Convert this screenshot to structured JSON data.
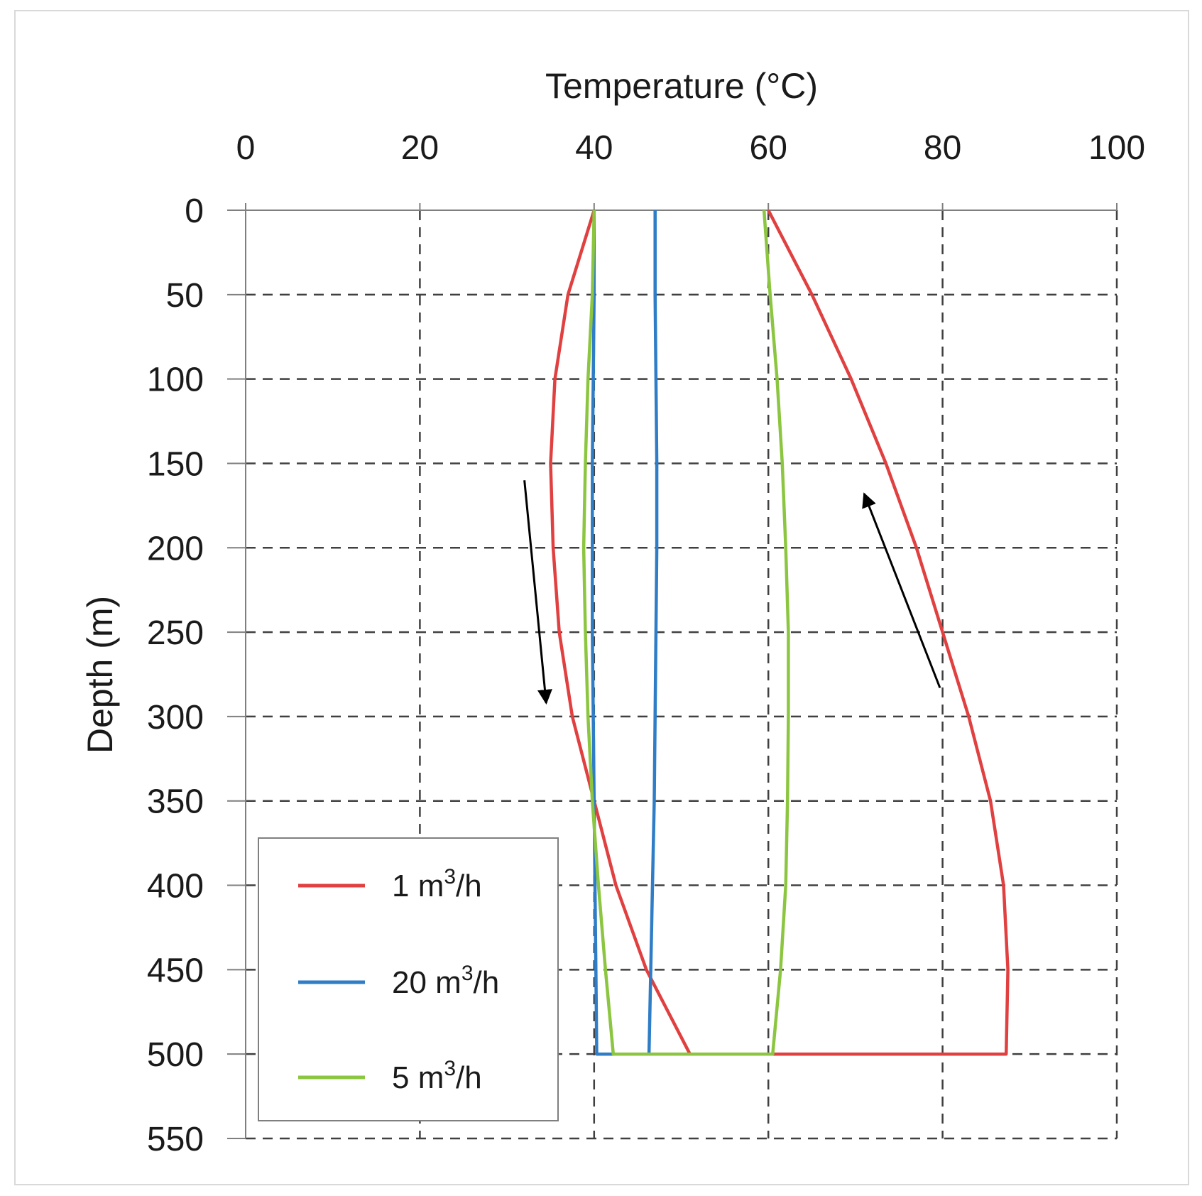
{
  "chart_data": {
    "type": "line",
    "title": "",
    "xlabel": "Temperature (°C)",
    "ylabel": "Depth (m)",
    "xlim": [
      0,
      100
    ],
    "ylim": [
      0,
      550
    ],
    "x_axis_position": "top",
    "y_axis_inverted": true,
    "x_ticks": [
      0,
      20,
      40,
      60,
      80,
      100
    ],
    "y_ticks": [
      0,
      50,
      100,
      150,
      200,
      250,
      300,
      350,
      400,
      450,
      500,
      550
    ],
    "grid": "dashed",
    "legend_position": "bottom-left",
    "series": [
      {
        "name": "1 m³/h",
        "label_main": "1 m",
        "label_sup": "3",
        "label_tail": "/h",
        "color": "#e04040",
        "downflow": {
          "temperature": [
            40,
            37,
            35.5,
            35,
            35.3,
            36,
            37.5,
            40,
            42.5,
            46,
            51
          ],
          "depth": [
            0,
            50,
            100,
            150,
            200,
            250,
            300,
            350,
            400,
            450,
            500
          ]
        },
        "upflow": {
          "temperature": [
            60,
            65,
            69.5,
            73.5,
            77,
            80,
            83,
            85.5,
            87,
            87.5,
            87.3
          ],
          "depth": [
            0,
            50,
            100,
            150,
            200,
            250,
            300,
            350,
            400,
            450,
            500
          ]
        }
      },
      {
        "name": "20 m³/h",
        "label_main": "20 m",
        "label_sup": "3",
        "label_tail": "/h",
        "color": "#2e7dc6",
        "downflow": {
          "temperature": [
            40,
            40,
            39.9,
            39.8,
            39.8,
            39.8,
            39.9,
            40,
            40.1,
            40.2,
            40.3
          ],
          "depth": [
            0,
            50,
            100,
            150,
            200,
            250,
            300,
            350,
            400,
            450,
            500
          ]
        },
        "upflow": {
          "temperature": [
            47,
            47,
            47.1,
            47.2,
            47.2,
            47.1,
            47,
            46.9,
            46.7,
            46.5,
            46.3
          ],
          "depth": [
            0,
            50,
            100,
            150,
            200,
            250,
            300,
            350,
            400,
            450,
            500
          ]
        }
      },
      {
        "name": "5 m³/h",
        "label_main": "5 m",
        "label_sup": "3",
        "label_tail": "/h",
        "color": "#8cc641",
        "downflow": {
          "temperature": [
            40,
            39.8,
            39.3,
            39,
            38.8,
            39,
            39.3,
            39.8,
            40.5,
            41.3,
            42.2
          ],
          "depth": [
            0,
            50,
            100,
            150,
            200,
            250,
            300,
            350,
            400,
            450,
            500
          ]
        },
        "upflow": {
          "temperature": [
            59.5,
            60.2,
            61,
            61.6,
            62,
            62.3,
            62.3,
            62.2,
            62,
            61.4,
            60.5
          ],
          "depth": [
            0,
            50,
            100,
            150,
            200,
            250,
            300,
            350,
            400,
            450,
            500
          ]
        }
      }
    ],
    "annotations": [
      {
        "type": "arrow",
        "direction": "down",
        "from": [
          32,
          160
        ],
        "to": [
          34.5,
          292
        ]
      },
      {
        "type": "arrow",
        "direction": "up",
        "from": [
          79.7,
          283
        ],
        "to": [
          71,
          168
        ]
      }
    ]
  }
}
